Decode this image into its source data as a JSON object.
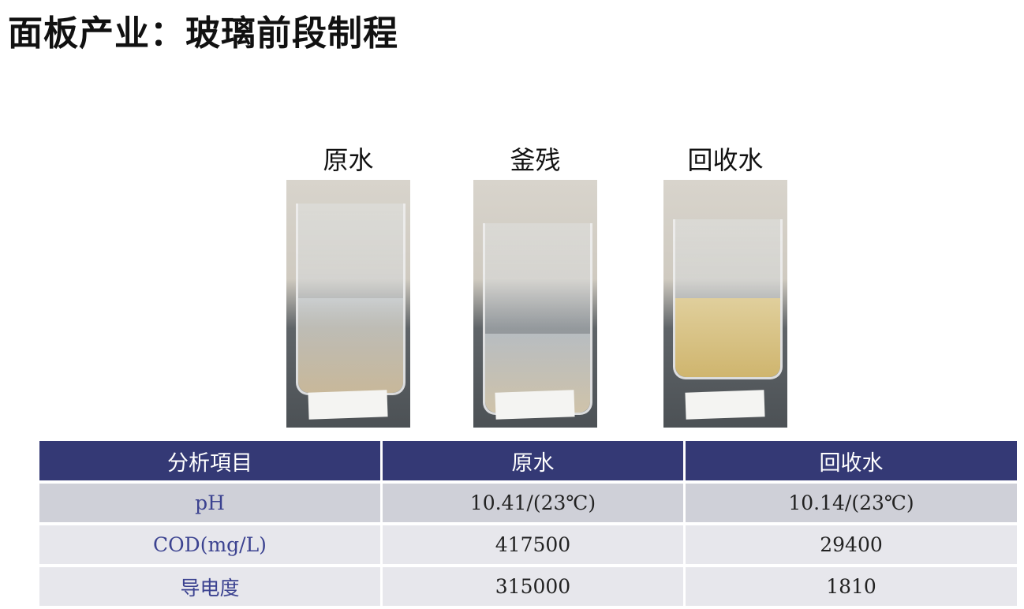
{
  "title": "面板产业：玻璃前段制程",
  "samples": [
    {
      "caption": "原水",
      "liquid": "#c8b89a"
    },
    {
      "caption": "釜残",
      "liquid": "#cfc3aa"
    },
    {
      "caption": "回收水",
      "liquid": "#cfb56e"
    }
  ],
  "table": {
    "headers": [
      "分析項目",
      "原水",
      "回收水"
    ],
    "rows": [
      [
        "pH",
        "10.41/(23℃)",
        "10.14/(23℃)"
      ],
      [
        "COD(mg/L)",
        "417500",
        "29400"
      ],
      [
        "导电度",
        "315000",
        "1810"
      ]
    ],
    "header_color": "#343975"
  }
}
